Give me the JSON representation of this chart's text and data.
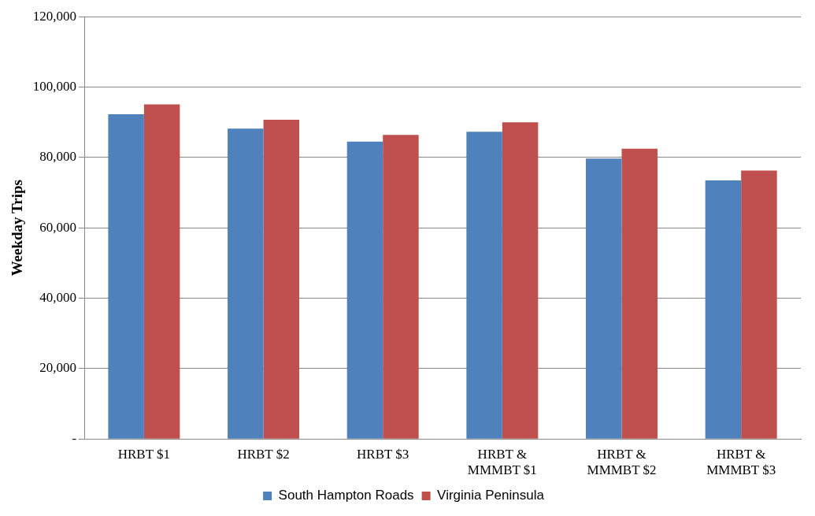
{
  "chart_data": {
    "type": "bar",
    "ylabel": "Weekday Trips",
    "categories": [
      "HRBT $1",
      "HRBT $2",
      "HRBT $3",
      "HRBT &\nMMMBT $1",
      "HRBT &\nMMMBT $2",
      "HRBT &\nMMMBT $3"
    ],
    "series": [
      {
        "name": "South Hampton Roads",
        "color": "#4f81bd",
        "values": [
          92300,
          88200,
          84500,
          87300,
          79700,
          73500
        ]
      },
      {
        "name": "Virginia Peninsula",
        "color": "#c0504d",
        "values": [
          95100,
          90700,
          86400,
          90000,
          82500,
          76300
        ]
      }
    ],
    "ylim": [
      0,
      120000
    ],
    "yticks": [
      {
        "value": 0,
        "label": "-"
      },
      {
        "value": 20000,
        "label": "20,000"
      },
      {
        "value": 40000,
        "label": "40,000"
      },
      {
        "value": 60000,
        "label": "60,000"
      },
      {
        "value": 80000,
        "label": "80,000"
      },
      {
        "value": 100000,
        "label": "100,000"
      },
      {
        "value": 120000,
        "label": "120,000"
      }
    ],
    "grid": "y",
    "legend": "bottom"
  }
}
